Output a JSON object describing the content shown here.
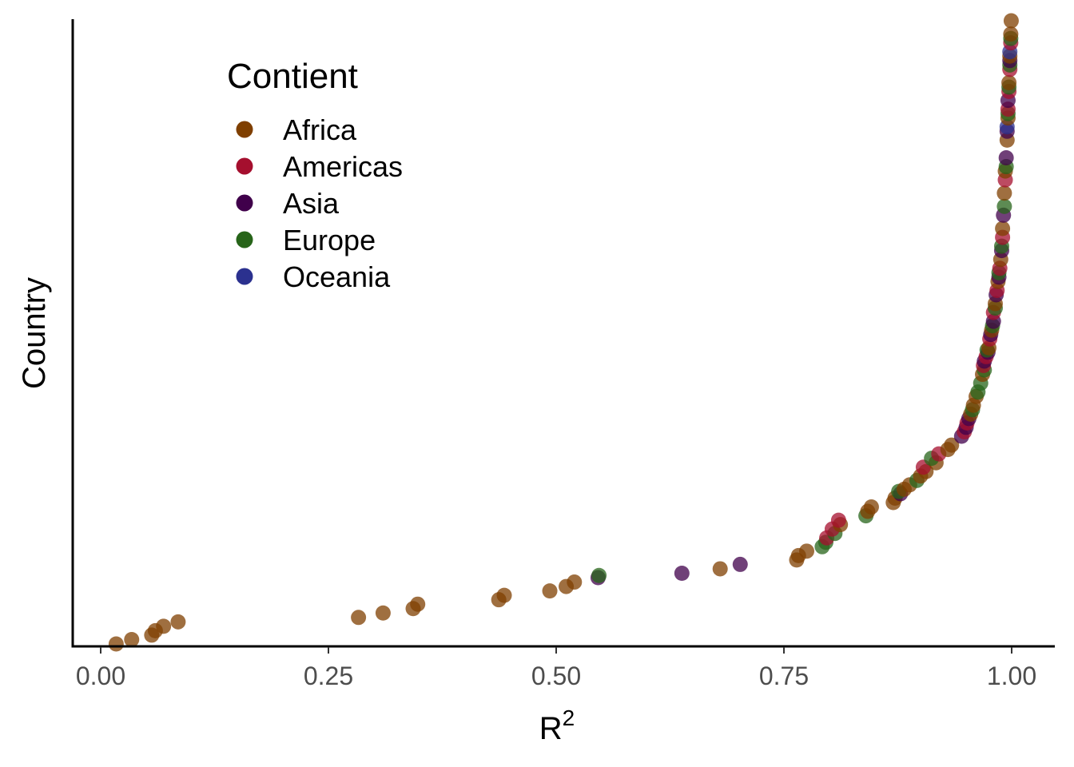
{
  "chart_data": {
    "type": "scatter",
    "xlabel": "R",
    "xlabel_superscript": "2",
    "ylabel": "Country",
    "xlim": [
      -0.03,
      1.03
    ],
    "x_ticks": [
      0.0,
      0.25,
      0.5,
      0.75,
      1.0
    ],
    "x_tick_labels": [
      "0.00",
      "0.25",
      "0.50",
      "0.75",
      "1.00"
    ],
    "y_axis": "countries ordered by R² (rank 1 = lowest)",
    "ylim": [
      1,
      142
    ],
    "grid": false,
    "legend": {
      "title": "Contient",
      "position": "top-left",
      "entries": [
        {
          "label": "Africa",
          "color": "#7F3F00"
        },
        {
          "label": "Americas",
          "color": "#A50F2E"
        },
        {
          "label": "Asia",
          "color": "#40004B"
        },
        {
          "label": "Europe",
          "color": "#276419"
        },
        {
          "label": "Oceania",
          "color": "#2B318F"
        }
      ]
    },
    "point_alpha": 0.75,
    "series": [
      {
        "name": "Africa",
        "color": "#7F3F00",
        "points": [
          [
            0.017,
            1
          ],
          [
            0.034,
            2
          ],
          [
            0.056,
            3
          ],
          [
            0.06,
            4
          ],
          [
            0.069,
            5
          ],
          [
            0.085,
            6
          ],
          [
            0.283,
            7
          ],
          [
            0.31,
            8
          ],
          [
            0.343,
            9
          ],
          [
            0.348,
            10
          ],
          [
            0.437,
            11
          ],
          [
            0.443,
            12
          ],
          [
            0.493,
            13
          ],
          [
            0.511,
            14
          ],
          [
            0.52,
            15
          ],
          [
            0.68,
            18
          ],
          [
            0.764,
            20
          ],
          [
            0.766,
            21
          ],
          [
            0.775,
            22
          ],
          [
            0.812,
            28
          ],
          [
            0.842,
            31
          ],
          [
            0.846,
            32
          ],
          [
            0.87,
            33
          ],
          [
            0.872,
            34
          ],
          [
            0.882,
            36
          ],
          [
            0.888,
            37
          ],
          [
            0.9,
            39
          ],
          [
            0.906,
            40
          ],
          [
            0.917,
            42
          ],
          [
            0.93,
            45
          ],
          [
            0.934,
            46
          ],
          [
            0.955,
            53
          ],
          [
            0.958,
            55
          ],
          [
            0.961,
            57
          ],
          [
            0.968,
            62
          ],
          [
            0.975,
            68
          ],
          [
            0.978,
            72
          ],
          [
            0.982,
            78
          ],
          [
            0.985,
            83
          ],
          [
            0.988,
            88
          ],
          [
            0.99,
            95
          ],
          [
            0.992,
            103
          ],
          [
            0.993,
            108
          ],
          [
            0.995,
            115
          ],
          [
            0.996,
            120
          ],
          [
            0.997,
            128
          ],
          [
            0.998,
            134
          ],
          [
            0.999,
            139
          ],
          [
            0.9995,
            142
          ]
        ]
      },
      {
        "name": "Americas",
        "color": "#A50F2E",
        "points": [
          [
            0.797,
            25
          ],
          [
            0.803,
            27
          ],
          [
            0.81,
            29
          ],
          [
            0.903,
            41
          ],
          [
            0.92,
            44
          ],
          [
            0.948,
            49
          ],
          [
            0.951,
            51
          ],
          [
            0.969,
            64
          ],
          [
            0.972,
            66
          ],
          [
            0.976,
            70
          ],
          [
            0.98,
            76
          ],
          [
            0.984,
            81
          ],
          [
            0.987,
            86
          ],
          [
            0.99,
            93
          ],
          [
            0.993,
            106
          ],
          [
            0.996,
            122
          ],
          [
            0.997,
            126
          ],
          [
            0.998,
            131
          ],
          [
            0.999,
            137
          ]
        ]
      },
      {
        "name": "Asia",
        "color": "#40004B",
        "points": [
          [
            0.546,
            16
          ],
          [
            0.638,
            17
          ],
          [
            0.702,
            19
          ],
          [
            0.878,
            35
          ],
          [
            0.945,
            48
          ],
          [
            0.95,
            50
          ],
          [
            0.953,
            52
          ],
          [
            0.97,
            65
          ],
          [
            0.974,
            67
          ],
          [
            0.977,
            71
          ],
          [
            0.98,
            74
          ],
          [
            0.983,
            80
          ],
          [
            0.986,
            84
          ],
          [
            0.989,
            90
          ],
          [
            0.991,
            98
          ],
          [
            0.994,
            111
          ],
          [
            0.995,
            117
          ],
          [
            0.996,
            124
          ],
          [
            0.998,
            133
          ]
        ]
      },
      {
        "name": "Europe",
        "color": "#276419"
      },
      {
        "name": "Oceania",
        "color": "#2B318F",
        "points": [
          [
            0.995,
            118
          ],
          [
            0.998,
            135
          ]
        ]
      }
    ],
    "europe_points": [
      [
        0.547,
        16.5
      ],
      [
        0.792,
        23
      ],
      [
        0.796,
        24
      ],
      [
        0.806,
        26
      ],
      [
        0.84,
        30
      ],
      [
        0.876,
        35.5
      ],
      [
        0.896,
        38
      ],
      [
        0.912,
        43
      ],
      [
        0.957,
        54
      ],
      [
        0.963,
        58
      ],
      [
        0.966,
        60
      ],
      [
        0.97,
        63
      ],
      [
        0.973,
        67.5
      ],
      [
        0.979,
        73
      ],
      [
        0.982,
        77
      ],
      [
        0.986,
        85
      ],
      [
        0.989,
        91
      ],
      [
        0.992,
        100
      ],
      [
        0.994,
        109
      ],
      [
        0.996,
        121
      ],
      [
        0.997,
        127
      ],
      [
        0.998,
        132
      ],
      [
        0.999,
        138
      ]
    ]
  }
}
